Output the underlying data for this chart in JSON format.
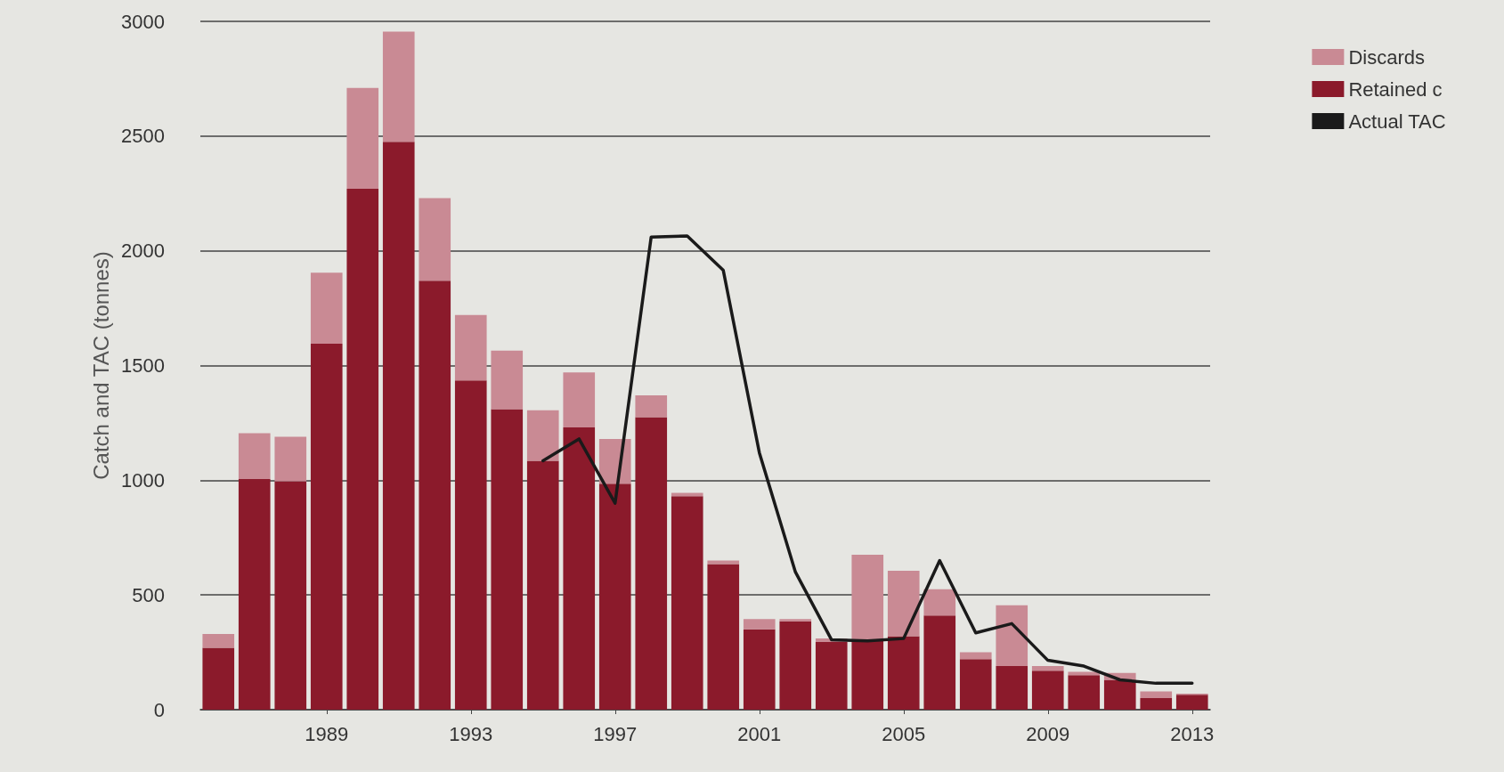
{
  "chart_data": {
    "type": "bar",
    "stacked": true,
    "ylabel": "Catch and TAC (tonnes)",
    "categories": [
      null,
      null,
      null,
      "1989",
      null,
      null,
      null,
      "1993",
      null,
      null,
      null,
      "1997",
      null,
      null,
      null,
      "2001",
      null,
      null,
      null,
      "2005",
      null,
      null,
      null,
      "2009",
      null,
      null,
      null,
      "2013"
    ],
    "series": [
      {
        "name": "Retained c",
        "color": "#8b1a2b",
        "values": [
          270,
          1005,
          995,
          1595,
          2270,
          2475,
          1870,
          1435,
          1310,
          1085,
          1230,
          985,
          1275,
          930,
          635,
          350,
          385,
          295,
          305,
          320,
          410,
          220,
          190,
          170,
          150,
          130,
          50,
          65
        ]
      },
      {
        "name": "Discards",
        "color": "#c98a94",
        "values": [
          60,
          200,
          195,
          310,
          440,
          480,
          360,
          285,
          255,
          220,
          240,
          195,
          95,
          15,
          15,
          45,
          10,
          15,
          370,
          285,
          115,
          30,
          265,
          20,
          15,
          30,
          30,
          5
        ]
      },
      {
        "name": "Actual TAC",
        "type": "line",
        "color": "#1a1a1a",
        "values": [
          null,
          null,
          null,
          null,
          null,
          null,
          null,
          null,
          null,
          1085,
          1180,
          900,
          2060,
          2065,
          1915,
          1120,
          600,
          305,
          300,
          310,
          650,
          335,
          375,
          215,
          190,
          130,
          115,
          115
        ]
      }
    ],
    "ylim": [
      0,
      3000
    ],
    "yticks": [
      0,
      500,
      1000,
      1500,
      2000,
      2500,
      3000
    ],
    "grid": "y",
    "legend": "top right",
    "marker": "none",
    "line_style": "solid"
  }
}
